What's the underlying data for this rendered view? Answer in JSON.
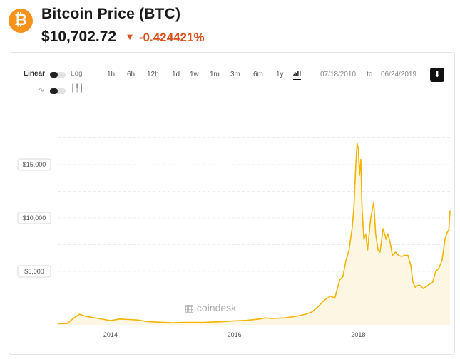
{
  "header": {
    "logo_glyph": "₿",
    "title": "Bitcoin Price (BTC)",
    "price": "$10,702.72",
    "change_arrow": "▼",
    "change": "-0.424421%",
    "change_color": "#d9501e",
    "brand_color": "#f7931a"
  },
  "controls": {
    "scale_linear": "Linear",
    "scale_log": "Log",
    "chart_type_line_icon": "line-chart-icon",
    "chart_type_candle_icon": "candlestick-icon",
    "ranges": [
      "1h",
      "6h",
      "12h",
      "1d",
      "1w",
      "1m",
      "3m",
      "6m",
      "1y",
      "all"
    ],
    "active_range": "all",
    "date_from": "07/18/2010",
    "date_to": "06/24/2019",
    "to_label": "to",
    "download_icon": "download-icon"
  },
  "chart_data": {
    "type": "area",
    "title": "",
    "xlabel": "",
    "ylabel": "",
    "line_color": "#f5b400",
    "fill_color": "#fdf6e3",
    "watermark": "coindesk",
    "y_ticks": [
      {
        "value": 5000,
        "label": "$5,000"
      },
      {
        "value": 10000,
        "label": "$10,000"
      },
      {
        "value": 15000,
        "label": "$15,000"
      }
    ],
    "x_ticks": [
      {
        "value": 2014.0,
        "label": "2014"
      },
      {
        "value": 2016.0,
        "label": "2016"
      },
      {
        "value": 2018.0,
        "label": "2018"
      }
    ],
    "xlim": [
      2013.15,
      2019.48
    ],
    "ylim": [
      0,
      20000
    ],
    "grid": true,
    "series": [
      {
        "x": [
          2013.15,
          2013.3,
          2013.4,
          2013.5,
          2013.6,
          2013.7,
          2013.8,
          2013.9,
          2014.0,
          2014.15,
          2014.3,
          2014.45,
          2014.6,
          2014.8,
          2015.0,
          2015.2,
          2015.5,
          2015.8,
          2016.0,
          2016.2,
          2016.4,
          2016.5,
          2016.6,
          2016.8,
          2017.0,
          2017.15,
          2017.25,
          2017.35,
          2017.45,
          2017.55,
          2017.62,
          2017.7,
          2017.75,
          2017.8,
          2017.85,
          2017.9,
          2017.93,
          2017.96,
          2017.98,
          2018.0,
          2018.02,
          2018.04,
          2018.06,
          2018.09,
          2018.12,
          2018.15,
          2018.2,
          2018.25,
          2018.28,
          2018.32,
          2018.35,
          2018.4,
          2018.45,
          2018.48,
          2018.52,
          2018.55,
          2018.6,
          2018.65,
          2018.7,
          2018.75,
          2018.8,
          2018.85,
          2018.88,
          2018.92,
          2018.96,
          2019.0,
          2019.05,
          2019.1,
          2019.15,
          2019.2,
          2019.25,
          2019.3,
          2019.35,
          2019.4,
          2019.43,
          2019.46,
          2019.48
        ],
        "y": [
          100,
          120,
          600,
          1000,
          800,
          700,
          600,
          500,
          400,
          550,
          500,
          450,
          300,
          250,
          200,
          230,
          230,
          290,
          370,
          420,
          550,
          650,
          600,
          650,
          800,
          1000,
          1200,
          1700,
          2300,
          2700,
          2500,
          4200,
          4500,
          6000,
          7000,
          9000,
          11000,
          15000,
          17000,
          16500,
          14000,
          15500,
          11000,
          8000,
          8500,
          7000,
          10000,
          11500,
          8500,
          7000,
          6800,
          9000,
          8000,
          8500,
          7500,
          6500,
          6800,
          6500,
          6400,
          6500,
          6500,
          5500,
          4000,
          3500,
          3700,
          3700,
          3400,
          3600,
          3800,
          4000,
          5000,
          5300,
          6000,
          8000,
          8600,
          8900,
          10700
        ]
      }
    ]
  }
}
